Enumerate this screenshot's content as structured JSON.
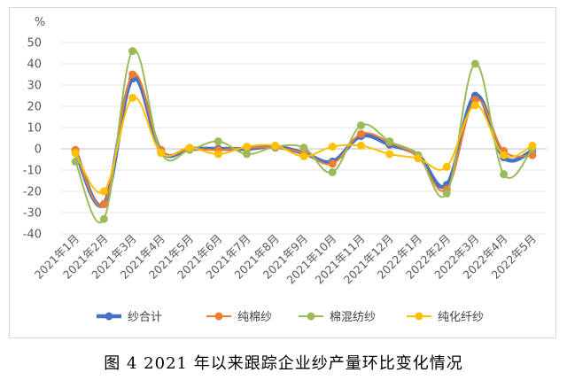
{
  "caption": "图 4   2021 年以来跟踪企业纱产量环比变化情况",
  "chart_data": {
    "type": "line",
    "unit_label": "%",
    "categories": [
      "2021年1月",
      "2021年2月",
      "2021年3月",
      "2021年4月",
      "2021年5月",
      "2021年6月",
      "2021年7月",
      "2021年8月",
      "2021年9月",
      "2021年10月",
      "2021年11月",
      "2021年12月",
      "2022年1月",
      "2022年2月",
      "2022年3月",
      "2022年4月",
      "2022年5月"
    ],
    "ylim": [
      -40,
      50
    ],
    "yticks": [
      -40,
      -30,
      -20,
      -10,
      0,
      10,
      20,
      30,
      40,
      50
    ],
    "grid": true,
    "legend_position": "bottom",
    "series": [
      {
        "name": "纱合计",
        "color": "#4472c4",
        "width": 4.5,
        "values": [
          -1,
          -26,
          33,
          -1,
          0,
          0,
          0,
          1,
          -2,
          -6,
          6,
          2,
          -3,
          -17,
          25,
          -4,
          -1
        ]
      },
      {
        "name": "纯棉纱",
        "color": "#ed7d31",
        "width": 2,
        "values": [
          -0.5,
          -26,
          35,
          -0.5,
          0,
          -0.5,
          0.5,
          0.5,
          -2,
          -7,
          7,
          3,
          -4,
          -19,
          23,
          -1,
          -3
        ]
      },
      {
        "name": "棉混纺纱",
        "color": "#9bbb59",
        "width": 2,
        "values": [
          -6,
          -33,
          46,
          -2,
          -0.5,
          3.5,
          -2.5,
          1,
          0.5,
          -11,
          11,
          3.5,
          -3,
          -21,
          40,
          -12,
          0
        ]
      },
      {
        "name": "纯化纤纱",
        "color": "#ffc000",
        "width": 2,
        "values": [
          -2,
          -20,
          24,
          -2,
          0.5,
          -2.5,
          1,
          1.5,
          -3.5,
          1,
          1.5,
          -2.5,
          -4.5,
          -8.5,
          20.5,
          -3,
          1.5
        ]
      }
    ]
  }
}
